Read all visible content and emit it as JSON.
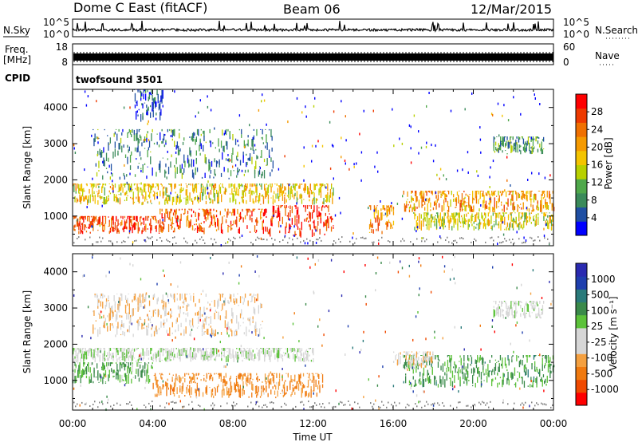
{
  "header": {
    "station": "Dome C East (fitACF)",
    "beam": "Beam 06",
    "date": "12/Mar/2015"
  },
  "status_panels": {
    "nsky_label": "N.Sky",
    "nsky_ticks": [
      "10^5",
      "10^0"
    ],
    "nsearch_label": "N.Search",
    "freq_label_1": "Freq.",
    "freq_label_2": "[MHz]",
    "freq_ticks": [
      "18",
      "8"
    ],
    "nave_label": "Nave",
    "nave_ticks": [
      "60",
      "0"
    ],
    "cpid_label": "CPID",
    "cpid_value": "twofsound 3501"
  },
  "colors": {
    "power": [
      "#0000ff",
      "#1f4fa3",
      "#3a8a5a",
      "#4fa84a",
      "#b8d000",
      "#f4c400",
      "#f59a00",
      "#f07000",
      "#ee3a00",
      "#ff0000"
    ],
    "velocity": [
      "#ff0000",
      "#f04a00",
      "#f07a10",
      "#f4a040",
      "#d6d6d6",
      "#d6d6d6",
      "#5cc23a",
      "#3a8a4a",
      "#2a7a7a",
      "#1f3fae",
      "#2a2ab0"
    ],
    "ground": "#808080"
  },
  "chart_data": [
    {
      "type": "heatmap",
      "name": "power",
      "ylabel": "Slant Range [km]",
      "ylim": [
        180,
        4500
      ],
      "yticks": [
        "1000",
        "2000",
        "3000",
        "4000"
      ],
      "xticks": [
        "00:00",
        "04:00",
        "08:00",
        "12:00",
        "16:00",
        "20:00",
        "00:00"
      ],
      "colorbar_label": "Power [dB]",
      "colorbar_ticks": [
        "4",
        "8",
        "12",
        "16",
        "20",
        "24",
        "28"
      ],
      "regions": [
        {
          "t0": 0.0,
          "t1": 4.2,
          "r0": 500,
          "r1": 1000,
          "level": 0.85
        },
        {
          "t0": 4.2,
          "t1": 9.5,
          "r0": 500,
          "r1": 1200,
          "level": 0.8
        },
        {
          "t0": 9.5,
          "t1": 13.0,
          "r0": 400,
          "r1": 1300,
          "level": 0.9
        },
        {
          "t0": 0.0,
          "t1": 13.0,
          "r0": 1300,
          "r1": 1900,
          "level": 0.55
        },
        {
          "t0": 1.0,
          "t1": 10.0,
          "r0": 2000,
          "r1": 3400,
          "level": 0.25
        },
        {
          "t0": 3.0,
          "t1": 4.5,
          "r0": 3600,
          "r1": 4500,
          "level": 0.15
        },
        {
          "t0": 14.8,
          "t1": 16.0,
          "r0": 500,
          "r1": 1300,
          "level": 0.7
        },
        {
          "t0": 16.5,
          "t1": 24.0,
          "r0": 1100,
          "r1": 1700,
          "level": 0.65
        },
        {
          "t0": 17.0,
          "t1": 24.0,
          "r0": 600,
          "r1": 1100,
          "level": 0.5
        },
        {
          "t0": 21.0,
          "t1": 23.5,
          "r0": 2700,
          "r1": 3200,
          "level": 0.3
        }
      ]
    },
    {
      "type": "heatmap",
      "name": "velocity",
      "ylabel": "Slant Range [km]",
      "ylim": [
        180,
        4500
      ],
      "yticks": [
        "1000",
        "2000",
        "3000",
        "4000"
      ],
      "xticks": [
        "00:00",
        "04:00",
        "08:00",
        "12:00",
        "16:00",
        "20:00",
        "00:00"
      ],
      "xlabel": "Time UT",
      "colorbar_label": "Velocity [m s⁻¹]",
      "colorbar_ticks": [
        "1000",
        "500",
        "100",
        "25",
        "-25",
        "-100",
        "-500",
        "-1000"
      ],
      "regions": [
        {
          "t0": 0.0,
          "t1": 4.0,
          "r0": 900,
          "r1": 1500,
          "level": 0.25
        },
        {
          "t0": 0.0,
          "t1": 12.0,
          "r0": 1500,
          "r1": 1900,
          "level": 0.0
        },
        {
          "t0": 4.0,
          "t1": 12.5,
          "r0": 500,
          "r1": 1200,
          "level": -0.45
        },
        {
          "t0": 1.0,
          "t1": 9.5,
          "r0": 2200,
          "r1": 3400,
          "level": -0.25
        },
        {
          "t0": 16.5,
          "t1": 24.0,
          "r0": 800,
          "r1": 1700,
          "level": 0.3
        },
        {
          "t0": 16.0,
          "t1": 18.0,
          "r0": 1300,
          "r1": 1800,
          "level": -0.2
        },
        {
          "t0": 21.0,
          "t1": 23.5,
          "r0": 2700,
          "r1": 3200,
          "level": 0.0
        }
      ]
    }
  ]
}
